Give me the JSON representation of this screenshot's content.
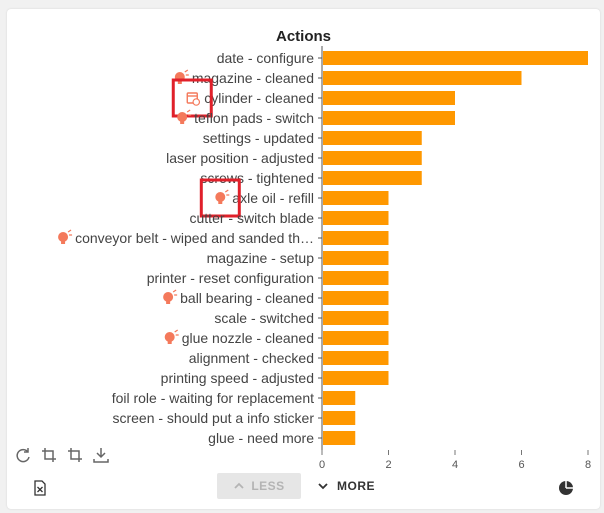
{
  "card": {
    "title": "Actions"
  },
  "chart_data": {
    "type": "bar",
    "orientation": "horizontal",
    "title": "Actions",
    "categories": [
      "date - configure",
      "magazine - cleaned",
      "cylinder - cleaned",
      "teflon pads - switch",
      "settings - updated",
      "laser position - adjusted",
      "screws - tightened",
      "axle oil - refill",
      "cutter - switch blade",
      "conveyor belt - wiped and sanded th…",
      "magazine - setup",
      "printer - reset configuration",
      "ball bearing - cleaned",
      "scale - switched",
      "glue nozzle - cleaned",
      "alignment - checked",
      "printing speed - adjusted",
      "foil role - waiting for replacement",
      "screen - should put a info sticker",
      "glue - need more"
    ],
    "values": [
      8,
      6,
      4,
      4,
      3,
      3,
      3,
      2,
      2,
      2,
      2,
      2,
      2,
      2,
      2,
      2,
      2,
      1,
      1,
      1
    ],
    "icons": [
      "",
      "idea-icon",
      "calendar-icon",
      "idea-icon",
      "",
      "",
      "",
      "idea-icon",
      "",
      "idea-icon",
      "",
      "",
      "idea-icon",
      "",
      "idea-icon",
      "",
      "",
      "",
      "",
      ""
    ],
    "xlim": [
      0,
      8
    ],
    "xticks": [
      0,
      2,
      4,
      6,
      8
    ],
    "bar_color": "#ff9800",
    "icon_color": "#f4795b",
    "highlight_color": "#e0202a"
  },
  "controls": {
    "less_label": "LESS",
    "more_label": "MORE"
  }
}
